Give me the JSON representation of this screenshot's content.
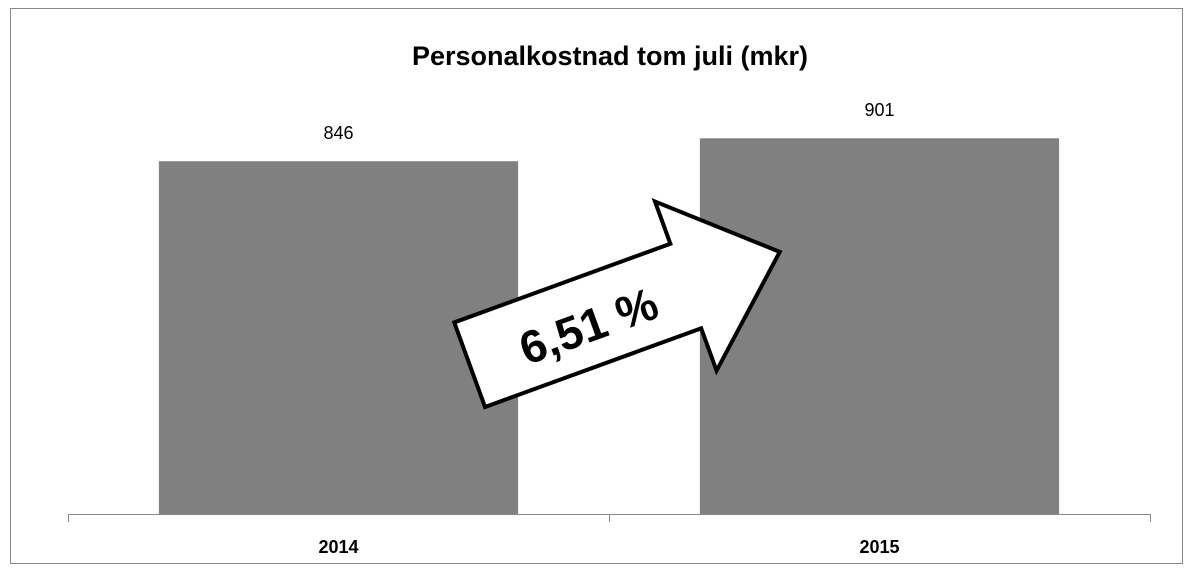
{
  "chart_data": {
    "type": "bar",
    "title": "Personalkostnad tom juli (mkr)",
    "categories": [
      "2014",
      "2015"
    ],
    "values": [
      846,
      901
    ],
    "color": "#808080",
    "ylim": [
      0,
      1000
    ],
    "annotation": "6,51 %"
  }
}
